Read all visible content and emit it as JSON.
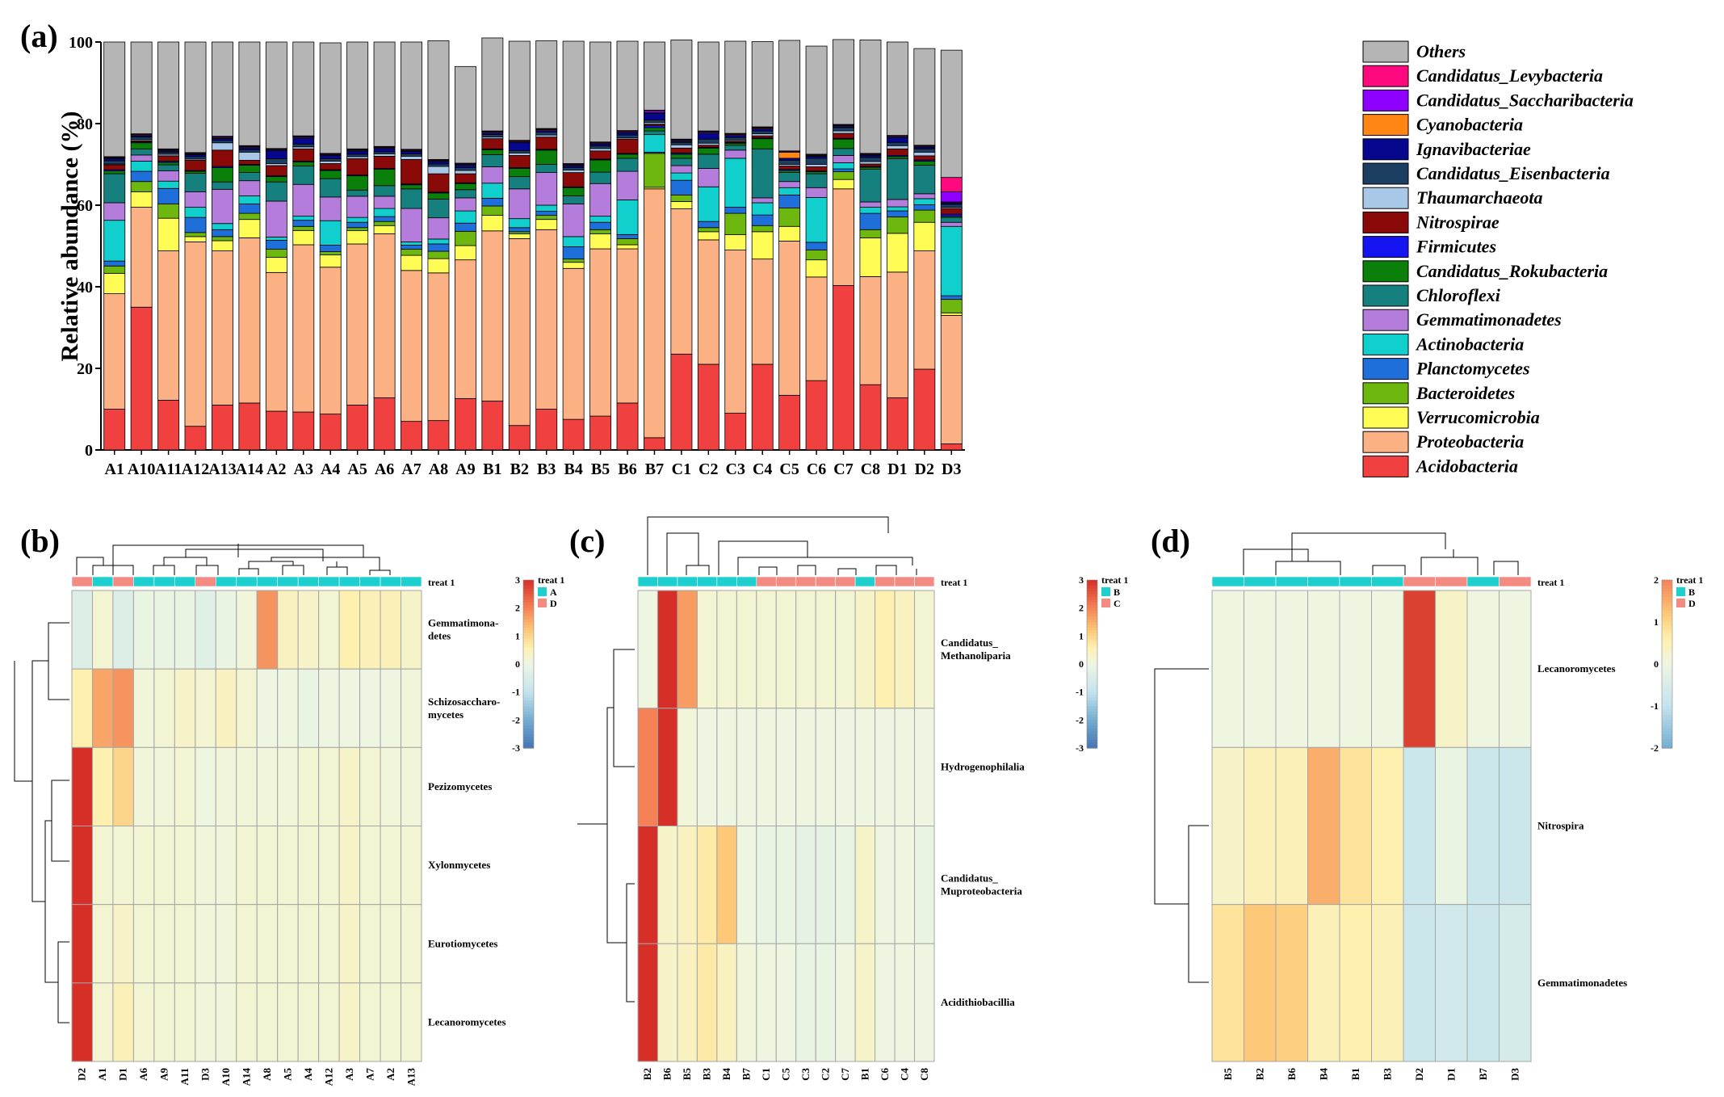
{
  "figure": {
    "panel_labels": [
      "(a)",
      "(b)",
      "(c)",
      "(d)"
    ]
  },
  "chart_data": [
    {
      "type": "bar",
      "stacked": true,
      "panel": "(a)",
      "ylabel": "Relative abundance (%)",
      "ylim": [
        0,
        100
      ],
      "yticks": [
        0,
        20,
        40,
        60,
        80,
        100
      ],
      "categories": [
        "A1",
        "A10",
        "A11",
        "A12",
        "A13",
        "A14",
        "A2",
        "A3",
        "A4",
        "A5",
        "A6",
        "A7",
        "A8",
        "A9",
        "B1",
        "B2",
        "B3",
        "B4",
        "B5",
        "B6",
        "B7",
        "C1",
        "C2",
        "C3",
        "C4",
        "C5",
        "C6",
        "C7",
        "C8",
        "D1",
        "D2",
        "D3"
      ],
      "legend_position": "right",
      "series": [
        {
          "name": "Acidobacteria",
          "color": "#f04040",
          "values": [
            10,
            35,
            12.2,
            5.8,
            11,
            11.5,
            9.5,
            9.3,
            8.8,
            11,
            12.8,
            7,
            7.2,
            12.6,
            12,
            6,
            10,
            7.5,
            8.3,
            11.5,
            3,
            23.5,
            21,
            9,
            21,
            13.4,
            17,
            40.3,
            16,
            12.8,
            19.8,
            1.5
          ]
        },
        {
          "name": "Proteobacteria",
          "color": "#fcb185",
          "values": [
            28.3,
            24.5,
            36.6,
            45.2,
            37.8,
            40.5,
            34,
            41,
            36,
            39.5,
            40.2,
            37,
            36.2,
            34,
            41.7,
            45.8,
            44,
            37,
            41,
            37.8,
            61,
            35.6,
            30.5,
            40,
            25.8,
            37.8,
            25.4,
            23.7,
            26.5,
            30.8,
            29,
            31.5
          ]
        },
        {
          "name": "Verrucomicrobia",
          "color": "#fffd55",
          "values": [
            5,
            3.8,
            8,
            1.3,
            2.5,
            4.5,
            3.7,
            3.5,
            3,
            3.3,
            2,
            3.7,
            3.5,
            3.5,
            3.8,
            1.2,
            2.5,
            1.5,
            3.7,
            1,
            0.4,
            1.8,
            2,
            3.8,
            6.7,
            3.6,
            4.2,
            2.3,
            9.5,
            9.5,
            7,
            0.6
          ]
        },
        {
          "name": "Bacteroidetes",
          "color": "#6db70f",
          "values": [
            1.8,
            2.5,
            3.5,
            1,
            1,
            1.5,
            2,
            1,
            0.8,
            0.7,
            1,
            1.5,
            1.8,
            3.5,
            2.3,
            0.5,
            1,
            0.8,
            1,
            1.5,
            8.3,
            1.6,
            1,
            5.2,
            1.5,
            4.5,
            2.4,
            1.9,
            2,
            4,
            3,
            3.3
          ]
        },
        {
          "name": "Planctomycetes",
          "color": "#1e6fd9",
          "values": [
            1.2,
            2.5,
            3.8,
            3.7,
            1.7,
            2.3,
            2.2,
            1.5,
            1.6,
            1.3,
            1.2,
            1,
            1.8,
            2,
            1.9,
            1,
            1,
            3,
            1.8,
            1,
            0.3,
            3.6,
            1.5,
            1.5,
            2.6,
            3.2,
            1.9,
            0.7,
            4,
            1.5,
            1.3,
            0.9
          ]
        },
        {
          "name": "Actinobacteria",
          "color": "#10cfcc",
          "values": [
            10,
            2.5,
            1.8,
            2.5,
            1.5,
            2,
            0.8,
            1,
            6,
            1.2,
            2,
            0.8,
            1.2,
            3,
            3.7,
            2.2,
            1.5,
            2.5,
            1.5,
            8.5,
            4.3,
            1.8,
            8.5,
            12,
            3,
            1.8,
            11,
            1.5,
            1.5,
            1,
            1.5,
            17
          ]
        },
        {
          "name": "Gemmatimonadetes",
          "color": "#b57ddb",
          "values": [
            4.3,
            1.5,
            2.5,
            3.8,
            8.4,
            3.7,
            8.8,
            7.8,
            5.8,
            5.2,
            3,
            8.2,
            5.2,
            3.2,
            4,
            7.3,
            8,
            8,
            8,
            7,
            0,
            1.8,
            4.5,
            2,
            1.2,
            1.5,
            2.4,
            1.8,
            1.3,
            1.8,
            1.2,
            1
          ]
        },
        {
          "name": "Chloroflexi",
          "color": "#16807f",
          "values": [
            7.1,
            1.5,
            1.5,
            4.5,
            1.8,
            2,
            4.7,
            4.5,
            4.5,
            1.5,
            2.6,
            4.8,
            4.6,
            2,
            3,
            3,
            2,
            2,
            2.8,
            3.2,
            0.9,
            1.8,
            3.5,
            1.2,
            12,
            2.2,
            3.4,
            1.7,
            8,
            10,
            7,
            1.2
          ]
        },
        {
          "name": "Candidatus_Rokubacteria",
          "color": "#0a7f0a",
          "values": [
            0.7,
            1.5,
            0.6,
            0.5,
            3.5,
            1.8,
            1.3,
            1,
            2,
            3.5,
            4,
            1,
            1.5,
            1.5,
            1.2,
            2,
            3.5,
            2,
            3,
            1,
            0.8,
            1,
            1.5,
            0.5,
            2.5,
            0.5,
            0.5,
            2.3,
            0.5,
            0.5,
            1,
            0.3
          ]
        },
        {
          "name": "Firmicutes",
          "color": "#1414f0",
          "values": [
            0.3,
            0.2,
            0.3,
            0.2,
            0.3,
            0.2,
            0.2,
            0.2,
            0.2,
            0.2,
            0.2,
            0.2,
            0.2,
            0.2,
            0.2,
            0.2,
            0.2,
            0.2,
            0.2,
            0.2,
            0.5,
            0.3,
            0.2,
            0.2,
            0.2,
            0.3,
            0.2,
            0.2,
            0.2,
            0.3,
            0.3,
            0.5
          ]
        },
        {
          "name": "Nitrospirae",
          "color": "#8a0a0a",
          "values": [
            1.2,
            0.3,
            1.3,
            2.5,
            4,
            1,
            2.5,
            3,
            1.5,
            4,
            3,
            6,
            4.5,
            2.2,
            2.5,
            3,
            3,
            3.5,
            2,
            3.5,
            0.4,
            1.2,
            0.5,
            0.3,
            0.5,
            0.8,
            1,
            1.2,
            0.6,
            1.6,
            1,
            1.4
          ]
        },
        {
          "name": "Thaumarchaeota",
          "color": "#a9c8e8",
          "values": [
            0.2,
            0.3,
            0.4,
            0.3,
            1.8,
            2,
            0.5,
            0.5,
            0.6,
            0.5,
            0.6,
            0.8,
            1.8,
            0.8,
            0.4,
            0.6,
            0.5,
            0.6,
            0.6,
            0.3,
            0.4,
            0.8,
            0.5,
            0.3,
            0.5,
            0.4,
            0.6,
            0.6,
            0.6,
            0.8,
            0.9,
            0.3
          ]
        },
        {
          "name": "Candidatus_Eisenbacteria",
          "color": "#1d3e63",
          "values": [
            0.8,
            0.6,
            0.5,
            0.6,
            0.6,
            0.6,
            1.2,
            0.7,
            0.6,
            0.6,
            0.5,
            0.6,
            0.6,
            0.7,
            0.6,
            0.6,
            0.7,
            0.6,
            0.6,
            0.7,
            0.6,
            0.6,
            1,
            0.6,
            0.7,
            1,
            1.5,
            0.8,
            1,
            0.8,
            0.8,
            0.7
          ]
        },
        {
          "name": "Ignavibacteriae",
          "color": "#06068f",
          "values": [
            0.5,
            0.3,
            0.3,
            0.5,
            0.5,
            0.5,
            2,
            1.5,
            0.8,
            0.8,
            0.8,
            0.6,
            0.6,
            0.6,
            0.4,
            2,
            0.4,
            0.5,
            0.5,
            0.6,
            1.6,
            0.3,
            1.5,
            0.5,
            0.5,
            0.5,
            0.5,
            0.3,
            0.5,
            1.2,
            0.4,
            0.4
          ]
        },
        {
          "name": "Cyanobacteria",
          "color": "#ff8614",
          "values": [
            0.2,
            0.2,
            0.2,
            0.2,
            0.2,
            0.2,
            0.2,
            0.2,
            0.2,
            0.2,
            0.2,
            0.2,
            0.2,
            0.2,
            0.2,
            0.2,
            0.2,
            0.2,
            0.2,
            0.2,
            0.2,
            0.2,
            0.2,
            0.2,
            0.2,
            1.5,
            0.2,
            0.2,
            0.2,
            0.2,
            0.2,
            0.2
          ]
        },
        {
          "name": "Candidatus_Saccharibacteria",
          "color": "#8e00ff",
          "values": [
            0.2,
            0.2,
            0.2,
            0.2,
            0.2,
            0.2,
            0.2,
            0.2,
            0.2,
            0.2,
            0.2,
            0.2,
            0.2,
            0.2,
            0.2,
            0.2,
            0.2,
            0.2,
            0.2,
            0.2,
            0.5,
            0.2,
            0.2,
            0.2,
            0.2,
            0.2,
            0.2,
            0.2,
            0.2,
            0.2,
            0.2,
            2.5
          ]
        },
        {
          "name": "Candidatus_Levybacteria",
          "color": "#ff0a7e",
          "values": [
            0.1,
            0.1,
            0.1,
            0.1,
            0.1,
            0.1,
            0.1,
            0.1,
            0.1,
            0.1,
            0.1,
            0.1,
            0.1,
            0.1,
            0.1,
            0.1,
            0.1,
            0.1,
            0.1,
            0.1,
            0.1,
            0.1,
            0.1,
            0.1,
            0.1,
            0.1,
            0.1,
            0.1,
            0.1,
            0.1,
            0.1,
            3.5
          ]
        },
        {
          "name": "Others",
          "color": "#b5b5b5",
          "values": [
            28.1,
            22.5,
            26.2,
            27.1,
            23.1,
            25.4,
            26.1,
            23,
            27.1,
            26.2,
            25.6,
            26.3,
            29.1,
            23.7,
            22.8,
            24.3,
            21.5,
            30,
            24.5,
            21.9,
            16.7,
            24.3,
            21.8,
            22.6,
            20.9,
            27.1,
            26.5,
            20.8,
            27.8,
            22.9,
            23.7,
            31.2
          ]
        }
      ]
    },
    {
      "type": "heatmap",
      "panel": "(b)",
      "annotation_title": "treat 1",
      "groups": [
        {
          "name": "A",
          "color": "#1ecfd0"
        },
        {
          "name": "D",
          "color": "#f48b83"
        }
      ],
      "colorbar_ticks": [
        3,
        2,
        1,
        0,
        -1,
        -2,
        -3
      ],
      "columns": [
        "D2",
        "A1",
        "D1",
        "A6",
        "A9",
        "A11",
        "D3",
        "A10",
        "A14",
        "A8",
        "A5",
        "A4",
        "A12",
        "A3",
        "A7",
        "A2",
        "A13"
      ],
      "column_groups": [
        "D",
        "A",
        "D",
        "A",
        "A",
        "A",
        "D",
        "A",
        "A",
        "A",
        "A",
        "A",
        "A",
        "A",
        "A",
        "A",
        "A"
      ],
      "rows": [
        "Gemmatimona-\ndetes",
        "Schizosaccharo-\nmycetes",
        "Pezizomycetes",
        "Xylonmycetes",
        "Eurotiomycetes",
        "Lecanoromycetes"
      ],
      "values": [
        [
          -0.4,
          0.2,
          -0.4,
          -0.1,
          -0.1,
          -0.1,
          -0.3,
          -0.1,
          0.1,
          1.8,
          0.4,
          0.3,
          0.2,
          0.6,
          0.5,
          0.5,
          0.3
        ],
        [
          0.6,
          1.6,
          1.8,
          0.1,
          0.2,
          0.3,
          0.2,
          0.4,
          0.2,
          0.0,
          0.0,
          -0.1,
          0.0,
          0.0,
          0.0,
          0.0,
          0.1
        ],
        [
          3.0,
          0.6,
          1.0,
          0.1,
          0.1,
          0.2,
          0.0,
          0.1,
          0.1,
          0.1,
          0.1,
          0.2,
          0.2,
          0.3,
          0.2,
          0.1,
          0.1
        ],
        [
          3.2,
          0.2,
          0.2,
          0.2,
          0.2,
          0.2,
          0.1,
          0.1,
          0.2,
          0.2,
          0.2,
          0.2,
          0.2,
          0.3,
          0.2,
          0.2,
          0.2
        ],
        [
          3.2,
          0.2,
          0.3,
          0.2,
          0.2,
          0.2,
          0.1,
          0.1,
          0.2,
          0.2,
          0.2,
          0.2,
          0.2,
          0.3,
          0.2,
          0.2,
          0.2
        ],
        [
          3.2,
          0.2,
          0.5,
          0.2,
          0.2,
          0.2,
          0.1,
          0.1,
          0.2,
          0.2,
          0.2,
          0.2,
          0.2,
          0.3,
          0.2,
          0.2,
          0.2
        ]
      ]
    },
    {
      "type": "heatmap",
      "panel": "(c)",
      "annotation_title": "treat 1",
      "groups": [
        {
          "name": "B",
          "color": "#1ecfd0"
        },
        {
          "name": "C",
          "color": "#f48b83"
        }
      ],
      "colorbar_ticks": [
        3,
        2,
        1,
        0,
        -1,
        -2,
        -3
      ],
      "columns": [
        "B2",
        "B6",
        "B5",
        "B3",
        "B4",
        "B7",
        "C1",
        "C5",
        "C3",
        "C2",
        "C7",
        "B1",
        "C6",
        "C4",
        "C8"
      ],
      "column_groups": [
        "B",
        "B",
        "B",
        "B",
        "B",
        "B",
        "C",
        "C",
        "C",
        "C",
        "C",
        "B",
        "C",
        "C",
        "C"
      ],
      "rows": [
        "Candidatus_\nMethanoliparia",
        "Hydrogenophilalia",
        "Candidatus_\nMuproteobacteria",
        "Acidithiobacillia"
      ],
      "values": [
        [
          0.0,
          3.0,
          1.7,
          0.2,
          0.2,
          0.2,
          0.2,
          0.2,
          0.2,
          0.2,
          0.2,
          0.3,
          0.6,
          0.4,
          0.2
        ],
        [
          2.0,
          3.0,
          0.1,
          0.0,
          0.0,
          0.0,
          0.0,
          0.0,
          0.0,
          0.0,
          0.0,
          0.0,
          0.0,
          0.0,
          0.0
        ],
        [
          3.2,
          0.3,
          0.4,
          0.7,
          1.2,
          0.0,
          -0.1,
          -0.1,
          -0.2,
          -0.2,
          -0.1,
          0.3,
          0.0,
          0.0,
          -0.1
        ],
        [
          3.2,
          0.3,
          0.4,
          0.7,
          0.4,
          0.1,
          0.0,
          0.0,
          -0.1,
          -0.1,
          0.0,
          0.3,
          0.0,
          0.0,
          0.0
        ]
      ]
    },
    {
      "type": "heatmap",
      "panel": "(d)",
      "annotation_title": "treat 1",
      "groups": [
        {
          "name": "B",
          "color": "#1ecfd0"
        },
        {
          "name": "D",
          "color": "#f48b83"
        }
      ],
      "colorbar_ticks": [
        2,
        1,
        0,
        -1,
        -2
      ],
      "columns": [
        "B5",
        "B2",
        "B6",
        "B4",
        "B1",
        "B3",
        "D2",
        "D1",
        "B7",
        "D3"
      ],
      "column_groups": [
        "B",
        "B",
        "B",
        "B",
        "B",
        "B",
        "D",
        "D",
        "B",
        "D"
      ],
      "rows": [
        "Lecanoromycetes",
        "Nitrospira",
        "Gemmatimonadetes"
      ],
      "values": [
        [
          0.0,
          0.0,
          0.0,
          0.0,
          0.0,
          0.0,
          2.8,
          0.3,
          0.0,
          0.0
        ],
        [
          0.3,
          0.5,
          0.5,
          1.5,
          0.8,
          0.6,
          -0.8,
          -0.1,
          -0.8,
          -0.8
        ],
        [
          0.8,
          1.2,
          1.1,
          0.5,
          0.6,
          0.5,
          -0.8,
          -0.7,
          -0.8,
          -0.6
        ]
      ]
    }
  ]
}
